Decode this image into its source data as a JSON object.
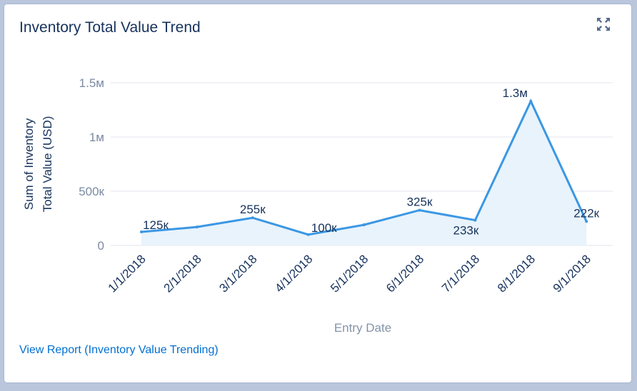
{
  "card": {
    "title": "Inventory Total Value Trend",
    "expand_icon": "expand-icon",
    "footer_link": "View Report (Inventory Value Trending)"
  },
  "colors": {
    "line": "#3b97e3",
    "area": "#e8f3fc",
    "grid": "#e1e6ee",
    "tick_label": "#7b8aa3",
    "axis_title": "#8393aa",
    "data_label": "#16325c",
    "title": "#16325c",
    "link": "#0070d2"
  },
  "chart_data": {
    "type": "area",
    "title": "Inventory Total Value Trend",
    "xlabel": "Entry Date",
    "ylabel": "Sum of Inventory Total Value (USD)",
    "ylim": [
      0,
      1500000
    ],
    "y_ticks": [
      {
        "value": 0,
        "label": "0"
      },
      {
        "value": 500000,
        "label": "500к"
      },
      {
        "value": 1000000,
        "label": "1м"
      },
      {
        "value": 1500000,
        "label": "1.5м"
      }
    ],
    "categories": [
      "1/1/2018",
      "2/1/2018",
      "3/1/2018",
      "4/1/2018",
      "5/1/2018",
      "6/1/2018",
      "7/1/2018",
      "8/1/2018",
      "9/1/2018"
    ],
    "values": [
      125000,
      170000,
      255000,
      100000,
      190000,
      325000,
      233000,
      1330000,
      222000
    ],
    "data_labels": [
      "125к",
      "",
      "255к",
      "100к",
      "",
      "325к",
      "233к",
      "1.3м",
      "222к"
    ],
    "grid": true,
    "legend": "none"
  }
}
